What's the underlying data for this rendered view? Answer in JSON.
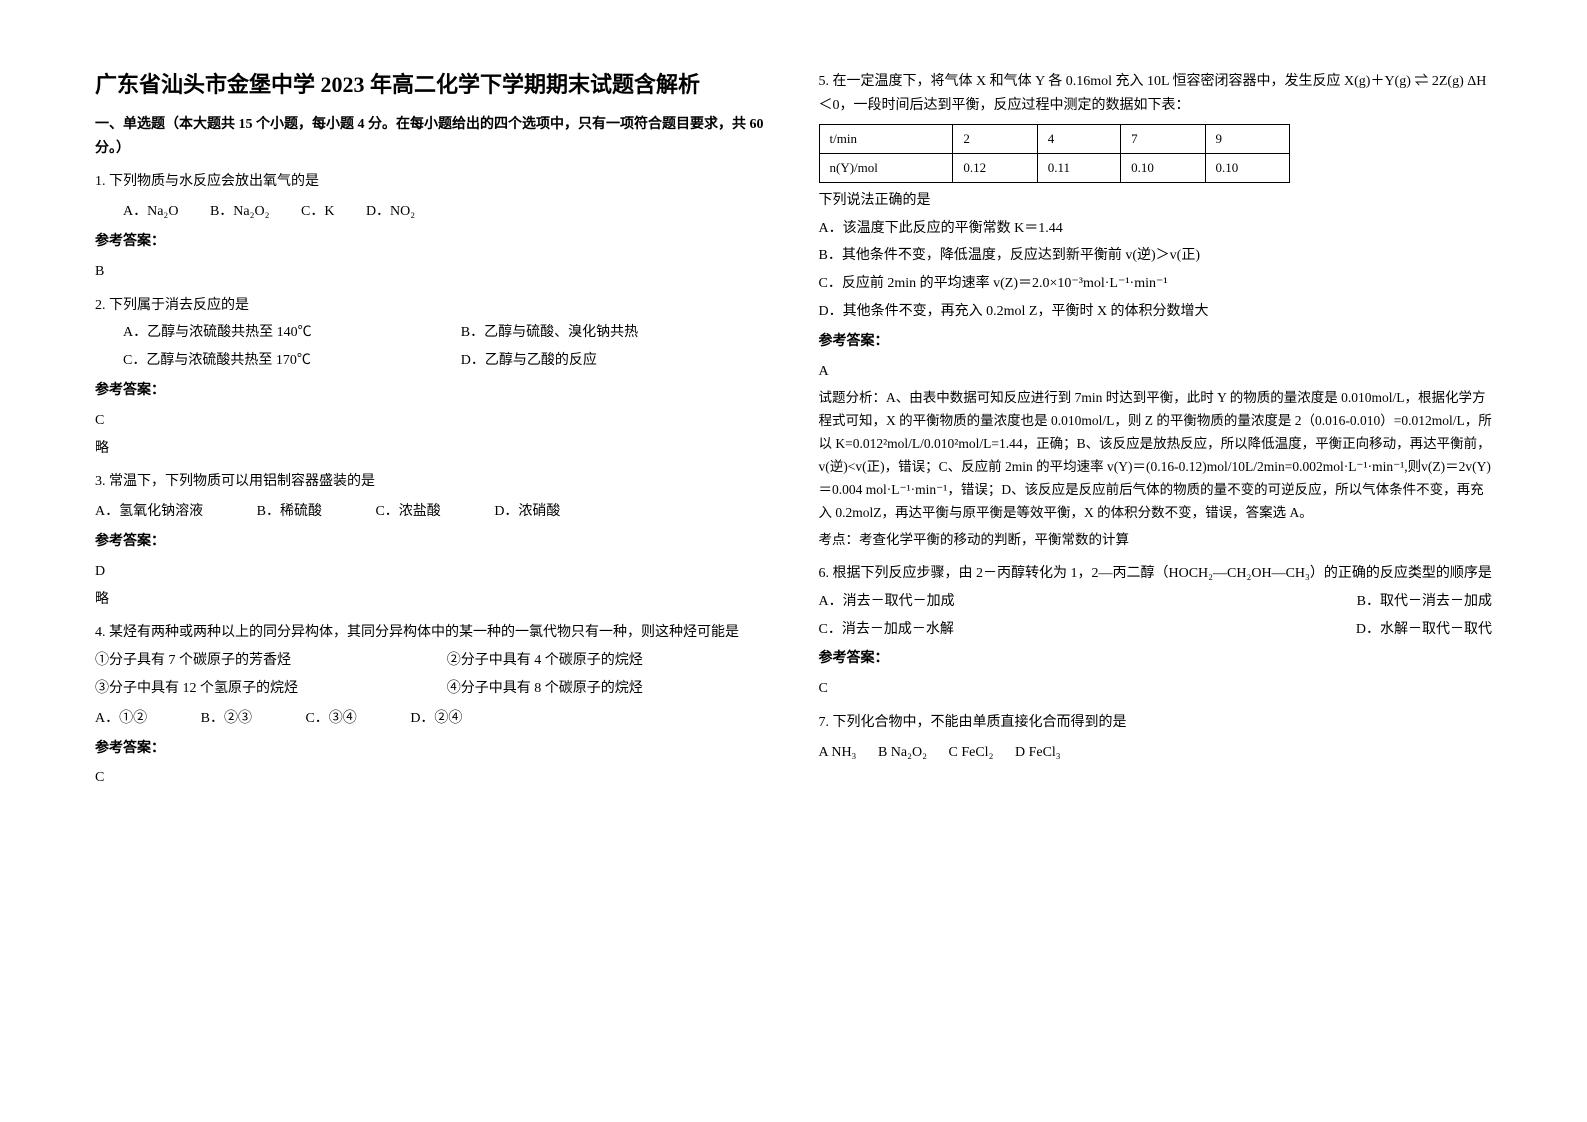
{
  "title": "广东省汕头市金堡中学 2023 年高二化学下学期期末试题含解析",
  "section1": "一、单选题（本大题共 15 个小题，每小题 4 分。在每小题给出的四个选项中，只有一项符合题目要求，共 60 分。）",
  "q1": {
    "text": "1. 下列物质与水反应会放出氧气的是",
    "a": "A．Na₂O",
    "b": "B．Na₂O₂",
    "c": "C．K",
    "d": "D．NO₂",
    "ans_label": "参考答案：",
    "ans": "B"
  },
  "q2": {
    "text": "2. 下列属于消去反应的是",
    "a": "A．乙醇与浓硫酸共热至 140℃",
    "b": "B．乙醇与硫酸、溴化钠共热",
    "c": "C．乙醇与浓硫酸共热至 170℃",
    "d": "D．乙醇与乙酸的反应",
    "ans_label": "参考答案：",
    "ans": "C",
    "note": "略"
  },
  "q3": {
    "text": "3. 常温下，下列物质可以用铝制容器盛装的是",
    "a": "A．氢氧化钠溶液",
    "b": "B．稀硫酸",
    "c": "C．浓盐酸",
    "d": "D．浓硝酸",
    "ans_label": "参考答案：",
    "ans": "D",
    "note": "略"
  },
  "q4": {
    "text": "4. 某烃有两种或两种以上的同分异构体，其同分异构体中的某一种的一氯代物只有一种，则这种烃可能是",
    "i1": "①分子具有 7 个碳原子的芳香烃",
    "i2": "②分子中具有 4 个碳原子的烷烃",
    "i3": "③分子中具有 12 个氢原子的烷烃",
    "i4": "④分子中具有 8 个碳原子的烷烃",
    "a": "A．①②",
    "b": "B．②③",
    "c": "C．③④",
    "d": "D．②④",
    "ans_label": "参考答案：",
    "ans": "C"
  },
  "q5": {
    "text": "5. 在一定温度下，将气体 X 和气体 Y 各 0.16mol 充入 10L 恒容密闭容器中，发生反应 X(g)＋Y(g) ⇌ 2Z(g)  ΔH＜0，一段时间后达到平衡，反应过程中测定的数据如下表：",
    "table": {
      "h1": "t/min",
      "h2": "2",
      "h3": "4",
      "h4": "7",
      "h5": "9",
      "r1": "n(Y)/mol",
      "r2": "0.12",
      "r3": "0.11",
      "r4": "0.10",
      "r5": "0.10"
    },
    "sub": "下列说法正确的是",
    "a": "A．该温度下此反应的平衡常数 K＝1.44",
    "b": "B．其他条件不变，降低温度，反应达到新平衡前 v(逆)＞v(正)",
    "c": "C．反应前 2min 的平均速率 v(Z)＝2.0×10⁻³mol·L⁻¹·min⁻¹",
    "d": "D．其他条件不变，再充入 0.2mol Z，平衡时 X 的体积分数增大",
    "ans_label": "参考答案：",
    "ans": "A",
    "analysis": "试题分析：A、由表中数据可知反应进行到 7min 时达到平衡，此时 Y 的物质的量浓度是 0.010mol/L，根据化学方程式可知，X 的平衡物质的量浓度也是 0.010mol/L，则 Z 的平衡物质的量浓度是 2（0.016-0.010）=0.012mol/L，所以 K=0.012²mol/L/0.010²mol/L=1.44，正确；B、该反应是放热反应，所以降低温度，平衡正向移动，再达平衡前，v(逆)<v(正)，错误；C、反应前 2min 的平均速率 v(Y)＝(0.16-0.12)mol/10L/2min=0.002mol·L⁻¹·min⁻¹,则v(Z)＝2v(Y)＝0.004 mol·L⁻¹·min⁻¹，错误；D、该反应是反应前后气体的物质的量不变的可逆反应，所以气体条件不变，再充入 0.2molZ，再达平衡与原平衡是等效平衡，X 的体积分数不变，错误，答案选 A。",
    "keypoint": "考点：考查化学平衡的移动的判断，平衡常数的计算"
  },
  "q6": {
    "text": "6. 根据下列反应步骤，由 2－丙醇转化为 1，2—丙二醇（HOCH₂—CH₂OH—CH₃）的正确的反应类型的顺序是",
    "a": "A．消去－取代－加成",
    "b": "B．取代－消去－加成",
    "c": "C．消去－加成－水解",
    "d": "D．水解－取代－取代",
    "ans_label": "参考答案：",
    "ans": "C"
  },
  "q7": {
    "text": "7. 下列化合物中，不能由单质直接化合而得到的是",
    "a": "A  NH₃",
    "b": "B  Na₂O₂",
    "c": "C  FeCl₂",
    "d": "D  FeCl₃"
  }
}
